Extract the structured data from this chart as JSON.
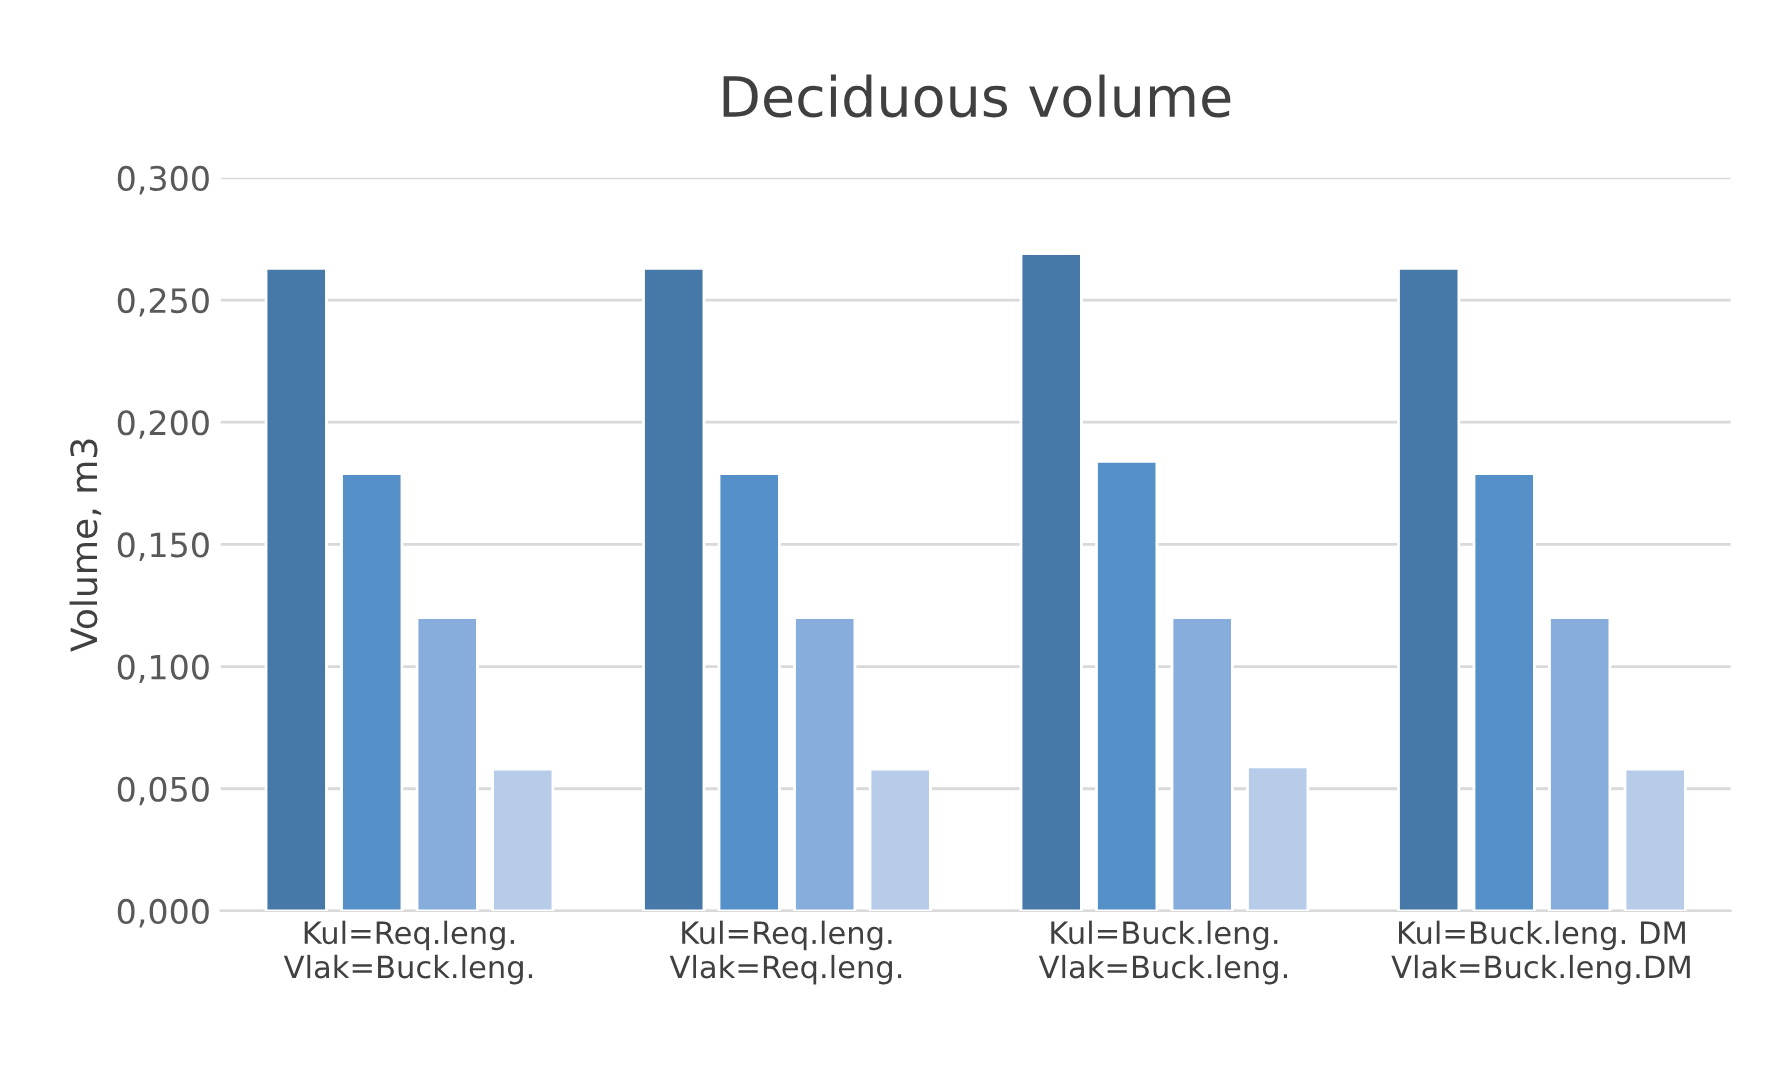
{
  "chart_data": {
    "type": "bar",
    "title": "Deciduous volume",
    "ylabel": "Volume, m3",
    "categories": [
      "Kul=Req.leng.\nVlak=Buck.leng.",
      "Kul=Req.leng.\nVlak=Req.leng.",
      "Kul=Buck.leng.\nVlak=Buck.leng.",
      "Kul=Buck.leng. DM\nVlak=Buck.leng.DM"
    ],
    "series": [
      {
        "color": "#4678a8",
        "values": [
          0.263,
          0.263,
          0.269,
          0.263
        ]
      },
      {
        "color": "#5590c8",
        "values": [
          0.179,
          0.179,
          0.184,
          0.179
        ]
      },
      {
        "color": "#86addb",
        "values": [
          0.12,
          0.12,
          0.12,
          0.12
        ]
      },
      {
        "color": "#b7cce9",
        "values": [
          0.058,
          0.058,
          0.059,
          0.058
        ]
      }
    ],
    "ylim": [
      0,
      0.3
    ],
    "yticks": [
      {
        "value": 0,
        "label": "0,000"
      },
      {
        "value": 0.05,
        "label": "0,050"
      },
      {
        "value": 0.1,
        "label": "0,100"
      },
      {
        "value": 0.15,
        "label": "0,150"
      },
      {
        "value": 0.2,
        "label": "0,200"
      },
      {
        "value": 0.25,
        "label": "0,250"
      },
      {
        "value": 0.3,
        "label": "0,300"
      }
    ],
    "grid": "y",
    "legend": false
  }
}
